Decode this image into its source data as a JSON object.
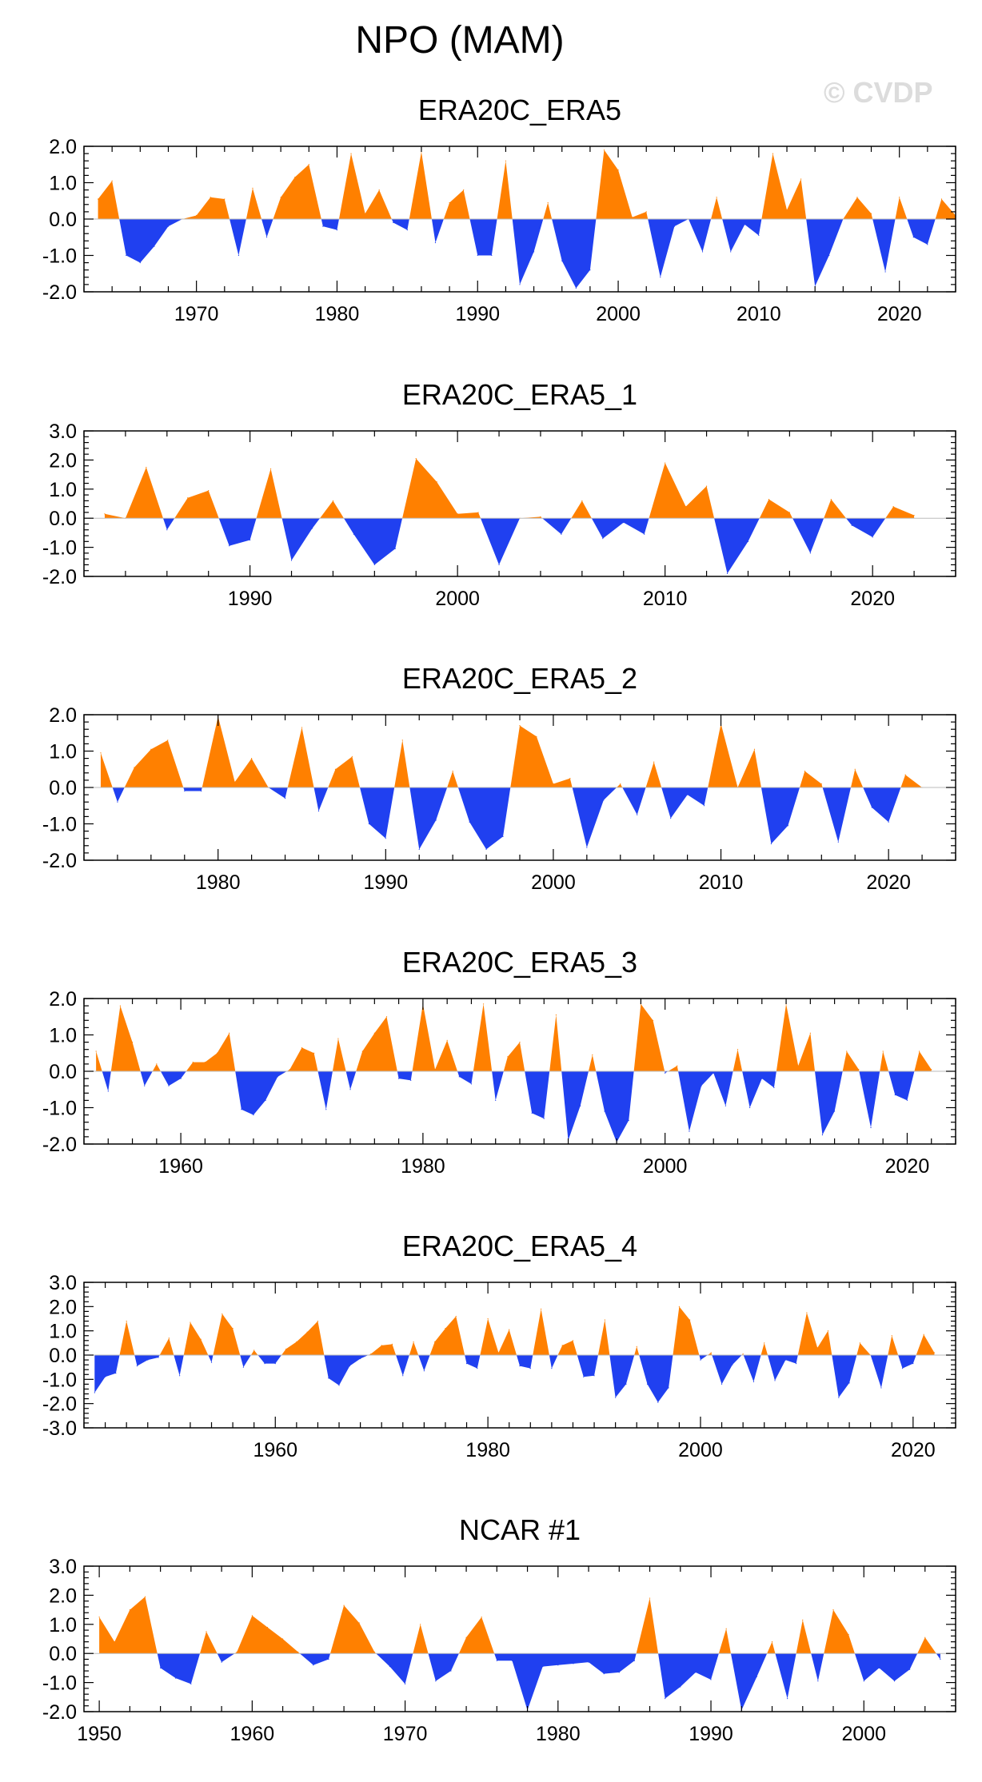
{
  "figure": {
    "title": "NPO (MAM)",
    "watermark": "© CVDP",
    "colors": {
      "positive": "#ff8000",
      "negative": "#2040f0",
      "axis": "#000000"
    }
  },
  "chart_data": [
    {
      "type": "area",
      "title": "ERA20C_ERA5",
      "xlim": [
        1962,
        2024
      ],
      "ylim": [
        -2.0,
        2.0
      ],
      "yticks": [
        "2.0",
        "1.0",
        "0.0",
        "-1.0",
        "-2.0"
      ],
      "ytick_values": [
        2,
        1,
        0,
        -1,
        -2
      ],
      "xticks": [
        "1970",
        "1980",
        "1990",
        "2000",
        "2010",
        "2020"
      ],
      "xtick_values": [
        1970,
        1980,
        1990,
        2000,
        2010,
        2020
      ],
      "x_start": 1963,
      "values": [
        0.55,
        1.05,
        -1.0,
        -1.2,
        -0.75,
        -0.2,
        0.0,
        0.1,
        0.6,
        0.55,
        -1.0,
        0.85,
        -0.5,
        0.6,
        1.15,
        1.5,
        -0.2,
        -0.3,
        1.8,
        0.15,
        0.8,
        -0.1,
        -0.3,
        1.85,
        -0.65,
        0.45,
        0.8,
        -1.0,
        -1.0,
        1.6,
        -1.8,
        -0.9,
        0.45,
        -1.15,
        -1.9,
        -1.4,
        1.9,
        1.35,
        0.05,
        0.2,
        -1.6,
        -0.2,
        0.0,
        -0.9,
        0.6,
        -0.9,
        -0.15,
        -0.45,
        1.8,
        0.25,
        1.1,
        -1.85,
        -1.0,
        0.0,
        0.6,
        0.15,
        -1.45,
        0.6,
        -0.5,
        -0.7,
        0.55,
        0.1
      ]
    },
    {
      "type": "area",
      "title": "ERA20C_ERA5_1",
      "xlim": [
        1982,
        2024
      ],
      "ylim": [
        -2.0,
        3.0
      ],
      "yticks": [
        "3.0",
        "2.0",
        "1.0",
        "0.0",
        "-1.0",
        "-2.0"
      ],
      "ytick_values": [
        3,
        2,
        1,
        0,
        -1,
        -2
      ],
      "xticks": [
        "1990",
        "2000",
        "2010",
        "2020"
      ],
      "xtick_values": [
        1990,
        2000,
        2010,
        2020
      ],
      "x_start": 1983,
      "values": [
        0.15,
        0.0,
        1.75,
        -0.4,
        0.7,
        0.95,
        -0.95,
        -0.75,
        1.7,
        -1.45,
        -0.35,
        0.6,
        -0.55,
        -1.6,
        -1.05,
        2.05,
        1.25,
        0.15,
        0.2,
        -1.6,
        0.0,
        0.05,
        -0.55,
        0.6,
        -0.7,
        -0.15,
        -0.55,
        1.9,
        0.4,
        1.1,
        -1.9,
        -0.8,
        0.65,
        0.2,
        -1.2,
        0.65,
        -0.25,
        -0.65,
        0.4,
        0.1
      ]
    },
    {
      "type": "area",
      "title": "ERA20C_ERA5_2",
      "xlim": [
        1972,
        2024
      ],
      "ylim": [
        -2.0,
        2.0
      ],
      "yticks": [
        "2.0",
        "1.0",
        "0.0",
        "-1.0",
        "-2.0"
      ],
      "ytick_values": [
        2,
        1,
        0,
        -1,
        -2
      ],
      "xticks": [
        "1980",
        "1990",
        "2000",
        "2010",
        "2020"
      ],
      "xtick_values": [
        1980,
        1990,
        2000,
        2010,
        2020
      ],
      "x_start": 1973,
      "values": [
        0.95,
        -0.4,
        0.55,
        1.05,
        1.3,
        -0.1,
        -0.1,
        1.95,
        0.15,
        0.8,
        0.0,
        -0.3,
        1.65,
        -0.65,
        0.5,
        0.85,
        -1.0,
        -1.4,
        1.3,
        -1.7,
        -0.9,
        0.45,
        -0.95,
        -1.7,
        -1.35,
        1.7,
        1.4,
        0.1,
        0.25,
        -1.65,
        -0.35,
        0.1,
        -0.75,
        0.7,
        -0.85,
        -0.2,
        -0.5,
        1.75,
        0.0,
        1.05,
        -1.55,
        -1.05,
        0.45,
        0.1,
        -1.5,
        0.5,
        -0.55,
        -0.95,
        0.35,
        0.0
      ]
    },
    {
      "type": "area",
      "title": "ERA20C_ERA5_3",
      "xlim": [
        1952,
        2024
      ],
      "ylim": [
        -2.0,
        2.0
      ],
      "yticks": [
        "2.0",
        "1.0",
        "0.0",
        "-1.0",
        "-2.0"
      ],
      "ytick_values": [
        2,
        1,
        0,
        -1,
        -2
      ],
      "xticks": [
        "1960",
        "1980",
        "2000",
        "2020"
      ],
      "xtick_values": [
        1960,
        1980,
        2000,
        2020
      ],
      "x_start": 1953,
      "values": [
        0.55,
        -0.55,
        1.8,
        0.8,
        -0.4,
        0.2,
        -0.4,
        -0.2,
        0.25,
        0.25,
        0.5,
        1.05,
        -1.05,
        -1.2,
        -0.8,
        -0.15,
        0.05,
        0.65,
        0.5,
        -1.05,
        0.9,
        -0.5,
        0.55,
        1.05,
        1.5,
        -0.2,
        -0.25,
        1.85,
        0.05,
        0.85,
        -0.15,
        -0.35,
        1.85,
        -0.8,
        0.4,
        0.8,
        -1.15,
        -1.3,
        1.55,
        -1.9,
        -0.95,
        0.45,
        -1.1,
        -1.95,
        -1.35,
        1.85,
        1.4,
        -0.05,
        0.15,
        -1.65,
        -0.4,
        -0.05,
        -0.95,
        0.6,
        -1.0,
        -0.2,
        -0.45,
        1.85,
        0.15,
        1.05,
        -1.75,
        -1.1,
        0.55,
        0.05,
        -1.55,
        0.55,
        -0.65,
        -0.8,
        0.55,
        0.05
      ]
    },
    {
      "type": "area",
      "title": "ERA20C_ERA5_4",
      "xlim": [
        1942,
        2024
      ],
      "ylim": [
        -3.0,
        3.0
      ],
      "yticks": [
        "3.0",
        "2.0",
        "1.0",
        "0.0",
        "-1.0",
        "-2.0",
        "-3.0"
      ],
      "ytick_values": [
        3,
        2,
        1,
        0,
        -1,
        -2,
        -3
      ],
      "xticks": [
        "1960",
        "1980",
        "2000",
        "2020"
      ],
      "xtick_values": [
        1960,
        1980,
        2000,
        2020
      ],
      "x_start": 1943,
      "values": [
        -1.55,
        -0.9,
        -0.75,
        1.4,
        -0.45,
        -0.2,
        -0.1,
        0.7,
        -0.85,
        1.35,
        0.65,
        -0.3,
        1.7,
        1.1,
        -0.5,
        0.2,
        -0.35,
        -0.35,
        0.25,
        0.55,
        0.95,
        1.4,
        -0.95,
        -1.25,
        -0.45,
        -0.15,
        0.05,
        0.4,
        0.45,
        -0.85,
        0.55,
        -0.65,
        0.55,
        1.1,
        1.6,
        -0.35,
        -0.55,
        1.5,
        0.1,
        1.05,
        -0.45,
        -0.55,
        1.9,
        -0.55,
        0.4,
        0.6,
        -0.9,
        -0.85,
        1.45,
        -1.75,
        -1.2,
        0.35,
        -1.2,
        -1.95,
        -1.35,
        2.0,
        1.45,
        -0.2,
        0.1,
        -1.2,
        -0.4,
        0.05,
        -1.1,
        0.5,
        -1.05,
        -0.2,
        -0.35,
        1.75,
        0.3,
        1.0,
        -1.75,
        -1.15,
        0.5,
        0.0,
        -1.35,
        0.8,
        -0.55,
        -0.35,
        0.85,
        0.1
      ]
    },
    {
      "type": "area",
      "title": "NCAR #1",
      "xlim": [
        1949,
        2006
      ],
      "ylim": [
        -2.0,
        3.0
      ],
      "yticks": [
        "3.0",
        "2.0",
        "1.0",
        "0.0",
        "-1.0",
        "-2.0"
      ],
      "ytick_values": [
        3,
        2,
        1,
        0,
        -1,
        -2
      ],
      "xticks": [
        "1950",
        "1960",
        "1970",
        "1980",
        "1990",
        "2000"
      ],
      "xtick_values": [
        1950,
        1960,
        1970,
        1980,
        1990,
        2000
      ],
      "x_start": 1950,
      "values": [
        1.25,
        0.4,
        1.5,
        1.95,
        -0.5,
        -0.85,
        -1.05,
        0.75,
        -0.3,
        0.05,
        1.3,
        0.9,
        0.5,
        0.05,
        -0.4,
        -0.2,
        1.65,
        1.05,
        0.05,
        -0.45,
        -1.05,
        1.0,
        -0.95,
        -0.6,
        0.55,
        1.25,
        -0.25,
        -0.25,
        -1.95,
        -0.45,
        -0.4,
        -0.35,
        -0.3,
        -0.7,
        -0.65,
        -0.25,
        1.9,
        -1.55,
        -1.15,
        -0.65,
        -0.9,
        0.85,
        -1.95,
        -0.8,
        0.4,
        -1.55,
        1.15,
        -0.95,
        1.5,
        0.65,
        -0.95,
        -0.5,
        -0.95,
        -0.55,
        0.55,
        -0.2
      ]
    }
  ]
}
